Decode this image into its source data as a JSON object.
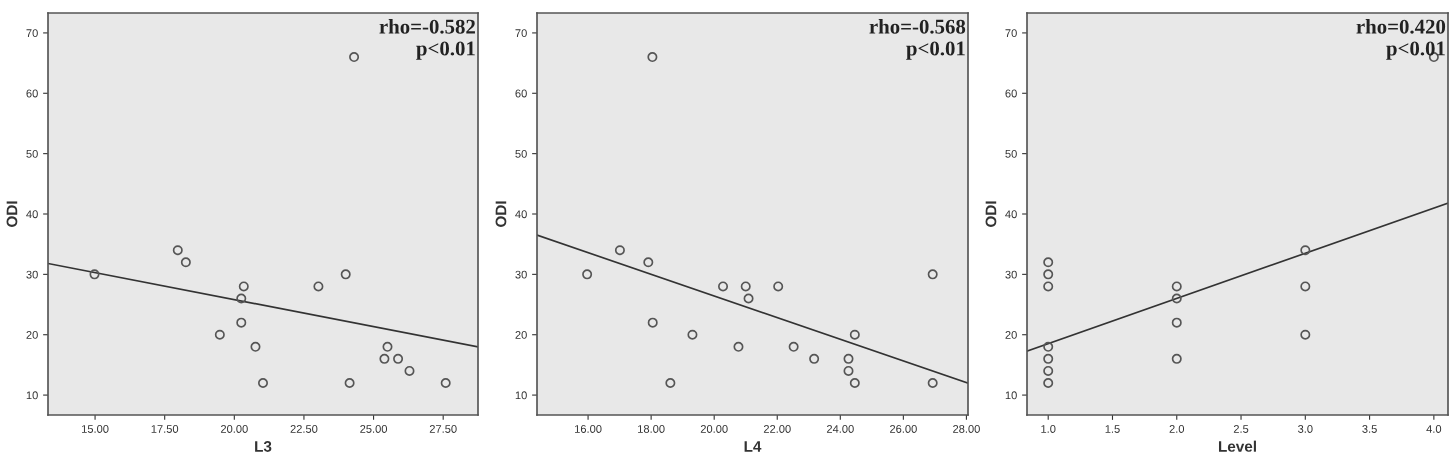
{
  "chart_data": [
    {
      "type": "scatter",
      "xlabel": "L3",
      "ylabel": "ODI",
      "xlim": [
        13.31,
        28.75
      ],
      "ylim": [
        6.7,
        73.3
      ],
      "xticks": [
        {
          "value": 15,
          "label": "15.00"
        },
        {
          "value": 17.5,
          "label": "17.50"
        },
        {
          "value": 20,
          "label": "20.00"
        },
        {
          "value": 22.5,
          "label": "22.50"
        },
        {
          "value": 25,
          "label": "25.00"
        },
        {
          "value": 27.5,
          "label": "27.50"
        }
      ],
      "yticks": [
        10,
        20,
        30,
        40,
        50,
        60,
        70
      ],
      "marker": "circle",
      "grid": false,
      "legend": false,
      "annotations": [
        "rho=-0.582\np<0.01"
      ],
      "series": [
        {
          "color": "#555555",
          "x": [
            24.3,
            17.97,
            18.26,
            14.98,
            24.0,
            20.34,
            23.02,
            20.25,
            20.25,
            19.48,
            20.76,
            21.03,
            25.5,
            25.39,
            25.88,
            26.29,
            24.14,
            27.59
          ],
          "values": [
            66,
            34,
            32,
            30,
            30,
            28,
            28,
            26,
            22,
            20,
            18,
            12,
            18,
            16,
            16,
            14,
            12,
            12
          ]
        },
        {
          "type": "line",
          "marker": "none",
          "color": "#333333",
          "x": [
            13.31,
            28.75
          ],
          "values": [
            31.8,
            18.0
          ]
        }
      ]
    },
    {
      "type": "scatter",
      "xlabel": "L4",
      "ylabel": "ODI",
      "xlim": [
        14.38,
        28.05
      ],
      "ylim": [
        6.7,
        73.3
      ],
      "xticks": [
        {
          "value": 16,
          "label": "16.00"
        },
        {
          "value": 18,
          "label": "18.00"
        },
        {
          "value": 20,
          "label": "20.00"
        },
        {
          "value": 22,
          "label": "22.00"
        },
        {
          "value": 24,
          "label": "24.00"
        },
        {
          "value": 26,
          "label": "26.00"
        },
        {
          "value": 28,
          "label": "28.00"
        }
      ],
      "yticks": [
        10,
        20,
        30,
        40,
        50,
        60,
        70
      ],
      "marker": "circle",
      "grid": false,
      "legend": false,
      "annotations": [
        "rho=-0.568\np<0.01"
      ],
      "series": [
        {
          "color": "#555555",
          "x": [
            18.04,
            17.01,
            17.91,
            15.97,
            26.93,
            20.28,
            21.0,
            22.03,
            21.09,
            18.05,
            19.31,
            24.46,
            20.77,
            22.52,
            23.17,
            24.26,
            24.26,
            18.61,
            24.46,
            26.93
          ],
          "values": [
            66,
            34,
            32,
            30,
            30,
            28,
            28,
            28,
            26,
            22,
            20,
            20,
            18,
            18,
            16,
            16,
            14,
            12,
            12,
            12
          ]
        },
        {
          "type": "line",
          "marker": "none",
          "color": "#333333",
          "x": [
            14.38,
            28.05
          ],
          "values": [
            36.5,
            12.0
          ]
        }
      ]
    },
    {
      "type": "scatter",
      "xlabel": "Level",
      "ylabel": "ODI",
      "xlim": [
        0.835,
        4.11
      ],
      "ylim": [
        6.7,
        73.3
      ],
      "xticks": [
        {
          "value": 1,
          "label": "1.0"
        },
        {
          "value": 1.5,
          "label": "1.5"
        },
        {
          "value": 2,
          "label": "2.0"
        },
        {
          "value": 2.5,
          "label": "2.5"
        },
        {
          "value": 3,
          "label": "3.0"
        },
        {
          "value": 3.5,
          "label": "3.5"
        },
        {
          "value": 4,
          "label": "4.0"
        }
      ],
      "yticks": [
        10,
        20,
        30,
        40,
        50,
        60,
        70
      ],
      "marker": "circle",
      "grid": false,
      "legend": false,
      "annotations": [
        "rho=0.420\np<0.01"
      ],
      "series": [
        {
          "color": "#555555",
          "x": [
            1,
            1,
            1,
            1,
            1,
            1,
            1,
            2,
            2,
            2,
            2,
            3,
            3,
            3,
            4
          ],
          "values": [
            32,
            30,
            28,
            18,
            16,
            14,
            12,
            28,
            26,
            22,
            16,
            34,
            28,
            20,
            66
          ]
        },
        {
          "type": "line",
          "marker": "none",
          "color": "#333333",
          "x": [
            0.835,
            4.11
          ],
          "values": [
            17.3,
            41.8
          ]
        }
      ]
    }
  ]
}
